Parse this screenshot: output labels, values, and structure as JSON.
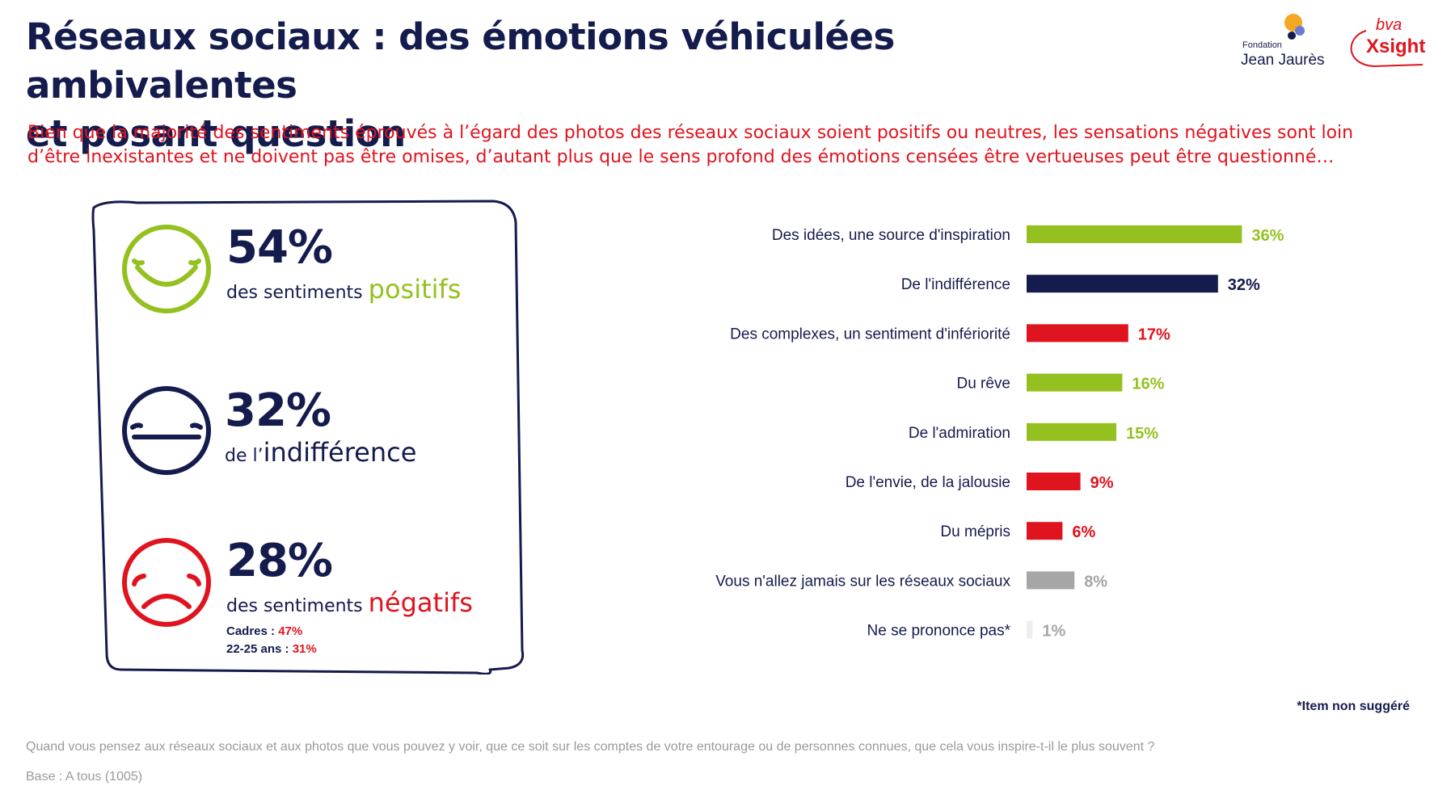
{
  "header": {
    "title_line1": "Réseaux sociaux : des émotions véhiculées ambivalentes",
    "title_line2": "et posant question",
    "subtitle_line1": "Bien que la majorité des sentiments éprouvés à l’égard des photos des réseaux sociaux soient positifs ou neutres, les sensations négatives sont loin",
    "subtitle_line2": "d’être inexistantes et ne doivent pas être omises, d’autant plus que le sens profond des émotions censées être vertueuses peut être questionné…"
  },
  "logos": {
    "fjj_small": "Fondation",
    "fjj_big": "Jean Jaurès",
    "bva_small": "bva",
    "bva_big": "Xsight"
  },
  "summary": {
    "positive": {
      "pct": "54%",
      "prefix": "des sentiments ",
      "highlight": "positifs"
    },
    "neutral": {
      "pct": "32%",
      "prefix": "de l’",
      "highlight": "indifférence"
    },
    "negative": {
      "pct": "28%",
      "prefix": "des sentiments ",
      "highlight": "négatifs",
      "detail1_label": "Cadres : ",
      "detail1_value": "47%",
      "detail2_label": "22-25 ans : ",
      "detail2_value": "31%"
    }
  },
  "colors": {
    "positive": "#94c11f",
    "neutral": "#141b4d",
    "negative": "#e0141e",
    "never": "#a6a6a6",
    "dk": "#eeeeee",
    "dk_label": "#a6a6a6"
  },
  "chart_data": {
    "type": "bar",
    "orientation": "horizontal",
    "categories": [
      "Des idées, une source d'inspiration",
      "De l'indifférence",
      "Des complexes, un sentiment d'infériorité",
      "Du rêve",
      "De l'admiration",
      "De l'envie, de la jalousie",
      "Du mépris",
      "Vous n'allez jamais sur les réseaux sociaux",
      "Ne se prononce pas*"
    ],
    "values": [
      36,
      32,
      17,
      16,
      15,
      9,
      6,
      8,
      1
    ],
    "value_labels": [
      "36%",
      "32%",
      "17%",
      "16%",
      "15%",
      "9%",
      "6%",
      "8%",
      "1%"
    ],
    "groups": [
      "positive",
      "neutral",
      "negative",
      "positive",
      "positive",
      "negative",
      "negative",
      "never",
      "dk"
    ],
    "xlim": [
      0,
      40
    ],
    "grid": false,
    "legend": "none"
  },
  "footer": {
    "footnote": "*Item non suggéré",
    "question": "Quand vous pensez aux réseaux sociaux et aux photos que vous pouvez y voir, que ce soit sur les comptes de votre entourage ou de personnes connues, que cela vous inspire-t-il le plus souvent ?",
    "base": "Base : A tous (1005)"
  }
}
